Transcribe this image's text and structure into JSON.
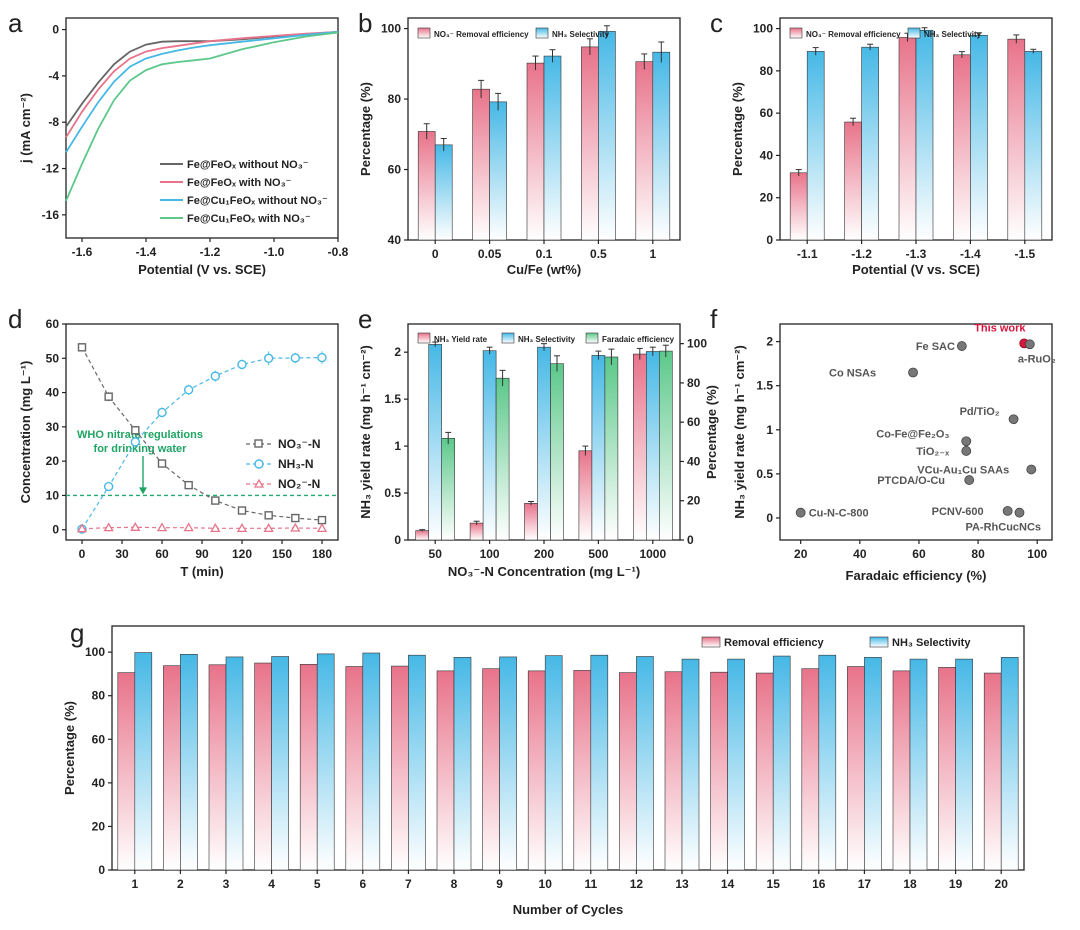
{
  "panels": {
    "a": "a",
    "b": "b",
    "c": "c",
    "d": "d",
    "e": "e",
    "f": "f",
    "g": "g"
  },
  "colors": {
    "red": "#e8738a",
    "blue": "#46b8e6",
    "green": "#5cc88a",
    "gray": "#666666",
    "highlight": "#d6163c"
  },
  "chart_data": [
    {
      "id": "a",
      "type": "line",
      "xlabel": "Potential (V vs. SCE)",
      "ylabel": "j (mA cm⁻²)",
      "xlim": [
        -1.65,
        -0.8
      ],
      "ylim": [
        -18,
        1
      ],
      "xticks": [
        -1.6,
        -1.4,
        -1.2,
        -1.0,
        -0.8
      ],
      "xtick_labels": [
        "-1.6",
        "-1.4",
        "-1.2",
        "-1.0",
        "-0.8"
      ],
      "yticks": [
        0,
        -4,
        -8,
        -12,
        -16
      ],
      "ytick_labels": [
        "0",
        "-4",
        "-8",
        "-12",
        "-16"
      ],
      "series": [
        {
          "name": "Fe@FeOₓ without NO₃⁻",
          "color": "#666666",
          "x": [
            -1.65,
            -1.6,
            -1.55,
            -1.5,
            -1.45,
            -1.4,
            -1.35,
            -1.3,
            -1.25,
            -1.2,
            -1.1,
            -1.0,
            -0.9,
            -0.8
          ],
          "y": [
            -8.4,
            -6.4,
            -4.6,
            -3.0,
            -1.9,
            -1.3,
            -1.05,
            -1.0,
            -1.0,
            -1.0,
            -0.85,
            -0.6,
            -0.4,
            -0.2
          ]
        },
        {
          "name": "Fe@FeOₓ with NO₃⁻",
          "color": "#e8738a",
          "x": [
            -1.65,
            -1.6,
            -1.55,
            -1.5,
            -1.45,
            -1.4,
            -1.35,
            -1.3,
            -1.25,
            -1.2,
            -1.1,
            -1.0,
            -0.9,
            -0.8
          ],
          "y": [
            -9.3,
            -7.1,
            -5.2,
            -3.6,
            -2.5,
            -1.9,
            -1.6,
            -1.4,
            -1.2,
            -1.0,
            -0.75,
            -0.55,
            -0.35,
            -0.2
          ]
        },
        {
          "name": "Fe@Cu₁FeOₓ without NO₃⁻",
          "color": "#46b8e6",
          "x": [
            -1.65,
            -1.6,
            -1.55,
            -1.5,
            -1.45,
            -1.4,
            -1.35,
            -1.3,
            -1.25,
            -1.2,
            -1.1,
            -1.0,
            -0.9,
            -0.8
          ],
          "y": [
            -10.6,
            -8.4,
            -6.3,
            -4.5,
            -3.2,
            -2.5,
            -2.1,
            -1.8,
            -1.55,
            -1.35,
            -1.05,
            -0.75,
            -0.45,
            -0.2
          ]
        },
        {
          "name": "Fe@Cu₁FeOₓ with NO₃⁻",
          "color": "#5cc88a",
          "x": [
            -1.65,
            -1.6,
            -1.55,
            -1.5,
            -1.45,
            -1.4,
            -1.35,
            -1.3,
            -1.25,
            -1.2,
            -1.15,
            -1.1,
            -1.0,
            -0.9,
            -0.8
          ],
          "y": [
            -14.8,
            -11.6,
            -8.6,
            -6.1,
            -4.4,
            -3.5,
            -3.0,
            -2.8,
            -2.65,
            -2.5,
            -2.1,
            -1.7,
            -1.1,
            -0.6,
            -0.25
          ]
        }
      ]
    },
    {
      "id": "b",
      "type": "bar",
      "xlabel": "Cu/Fe (wt%)",
      "ylabel": "Percentage (%)",
      "ylim": [
        40,
        103
      ],
      "yticks": [
        40,
        60,
        80,
        100
      ],
      "categories": [
        "0",
        "0.05",
        "0.1",
        "0.5",
        "1"
      ],
      "series": [
        {
          "name": "NO₃⁻ Removal efficiency",
          "color": "#e8738a",
          "values": [
            70.8,
            82.8,
            90.2,
            94.8,
            90.6
          ],
          "errors": [
            2.2,
            2.5,
            2.0,
            2.3,
            2.2
          ]
        },
        {
          "name": "NH₃ Selectivity",
          "color": "#46b8e6",
          "values": [
            67.0,
            79.2,
            92.2,
            99.2,
            93.3
          ],
          "errors": [
            1.8,
            2.4,
            1.8,
            1.6,
            2.9
          ]
        }
      ]
    },
    {
      "id": "c",
      "type": "bar",
      "xlabel": "Potential (V vs. SCE)",
      "ylabel": "Percentage (%)",
      "ylim": [
        0,
        105
      ],
      "yticks": [
        0,
        20,
        40,
        60,
        80,
        100
      ],
      "categories": [
        "-1.1",
        "-1.2",
        "-1.3",
        "-1.4",
        "-1.5"
      ],
      "series": [
        {
          "name": "NO₃⁻ Removal efficiency",
          "color": "#e8738a",
          "values": [
            31.8,
            55.8,
            95.8,
            87.6,
            95.0
          ],
          "errors": [
            1.5,
            1.8,
            2.0,
            1.5,
            2.0
          ]
        },
        {
          "name": "NH₃ Selectivity",
          "color": "#46b8e6",
          "values": [
            89.2,
            91.2,
            99.2,
            96.8,
            89.2
          ],
          "errors": [
            1.8,
            1.4,
            1.2,
            1.2,
            1.0
          ]
        }
      ]
    },
    {
      "id": "d",
      "type": "line",
      "xlabel": "T (min)",
      "ylabel": "Concentration (mg L⁻¹)",
      "xlim": [
        -12,
        192
      ],
      "ylim": [
        -3,
        60
      ],
      "xticks": [
        0,
        30,
        60,
        90,
        120,
        150,
        180
      ],
      "yticks": [
        0,
        10,
        20,
        30,
        40,
        50,
        60
      ],
      "reference_line": 10,
      "annotation": [
        "WHO nitrate regulations",
        "for drinking water"
      ],
      "series": [
        {
          "name": "NO₃⁻-N",
          "color": "#666666",
          "marker": "square",
          "x": [
            0,
            20,
            40,
            60,
            80,
            100,
            120,
            140,
            160,
            180
          ],
          "y": [
            53.2,
            38.8,
            29.0,
            19.3,
            13.0,
            8.5,
            5.6,
            4.2,
            3.4,
            2.8
          ],
          "errors": [
            1.2,
            1.3,
            1.2,
            1.0,
            1.0,
            1.0,
            1.1,
            1.0,
            0.9,
            0.9
          ]
        },
        {
          "name": "NH₃-N",
          "color": "#46b8e6",
          "marker": "circle",
          "x": [
            0,
            20,
            40,
            60,
            80,
            100,
            120,
            140,
            160,
            180
          ],
          "y": [
            0.2,
            12.6,
            25.6,
            34.2,
            40.8,
            44.8,
            48.2,
            50.0,
            50.1,
            50.2
          ],
          "errors": [
            0.5,
            1.0,
            1.4,
            1.4,
            1.5,
            1.6,
            1.4,
            2.0,
            1.5,
            1.8
          ]
        },
        {
          "name": "NO₂⁻-N",
          "color": "#e8738a",
          "marker": "triangle",
          "x": [
            0,
            20,
            40,
            60,
            80,
            100,
            120,
            140,
            160,
            180
          ],
          "y": [
            0.3,
            0.6,
            0.7,
            0.6,
            0.6,
            0.4,
            0.4,
            0.4,
            0.5,
            0.4
          ],
          "errors": [
            0.3,
            0.4,
            0.4,
            0.3,
            0.3,
            0.3,
            0.3,
            0.3,
            0.3,
            0.3
          ]
        }
      ]
    },
    {
      "id": "e",
      "type": "bar",
      "xlabel": "NO₃⁻-N Concentration (mg L⁻¹)",
      "ylabel": "NH₃ yield rate (mg h⁻¹ cm⁻²)",
      "ylabel_right": "Percentage (%)",
      "ylim": [
        0,
        2.3
      ],
      "ylim_right": [
        0,
        110
      ],
      "yticks": [
        0.0,
        0.5,
        1.0,
        1.5,
        2.0
      ],
      "yticks_right": [
        0,
        20,
        40,
        60,
        80,
        100
      ],
      "categories": [
        "50",
        "100",
        "200",
        "500",
        "1000"
      ],
      "series": [
        {
          "name": "NH₃ Yield rate",
          "axis": "left",
          "color": "#e8738a",
          "values": [
            0.1,
            0.18,
            0.39,
            0.95,
            1.98
          ],
          "errors": [
            0.01,
            0.02,
            0.02,
            0.05,
            0.06
          ]
        },
        {
          "name": "NH₃ Selectivity",
          "axis": "right",
          "color": "#46b8e6",
          "values": [
            99.6,
            96.4,
            98.2,
            94.0,
            96.0
          ],
          "errors": [
            1.2,
            1.8,
            1.8,
            2.2,
            2.2
          ]
        },
        {
          "name": "Faradaic efficiency",
          "axis": "right",
          "color": "#5cc88a",
          "values": [
            51.8,
            82.4,
            89.8,
            93.2,
            96.2
          ],
          "errors": [
            3.0,
            4.0,
            4.0,
            4.0,
            3.0
          ]
        }
      ]
    },
    {
      "id": "f",
      "type": "scatter",
      "xlabel": "Faradaic efficiency (%)",
      "ylabel": "NH₃ yield rate (mg h⁻¹ cm⁻²)",
      "xlim": [
        13,
        105
      ],
      "ylim": [
        -0.25,
        2.2
      ],
      "xticks": [
        20,
        40,
        60,
        80,
        100
      ],
      "yticks": [
        0.0,
        0.5,
        1.0,
        1.5,
        2.0
      ],
      "points": [
        {
          "label": "This work",
          "x": 95.6,
          "y": 1.98,
          "highlight": true
        },
        {
          "label": "a-RuO₂",
          "x": 97.5,
          "y": 1.97
        },
        {
          "label": "Fe SAC",
          "x": 74.5,
          "y": 1.95
        },
        {
          "label": "Co NSAs",
          "x": 58.0,
          "y": 1.65
        },
        {
          "label": "Pd/TiO₂",
          "x": 92.0,
          "y": 1.12
        },
        {
          "label": "Co-Fe@Fe₂O₃",
          "x": 76.0,
          "y": 0.87
        },
        {
          "label": "TiO₂₋ₓ",
          "x": 76.0,
          "y": 0.76
        },
        {
          "label": "VCu-Au₁Cu SAAs",
          "x": 98.0,
          "y": 0.55
        },
        {
          "label": "PTCDA/O-Cu",
          "x": 77.0,
          "y": 0.43
        },
        {
          "label": "PCNV-600",
          "x": 90.0,
          "y": 0.08
        },
        {
          "label": "PA-RhCucNCs",
          "x": 94.0,
          "y": 0.06
        },
        {
          "label": "Cu-N-C-800",
          "x": 20.0,
          "y": 0.06
        }
      ]
    },
    {
      "id": "g",
      "type": "bar",
      "xlabel": "Number of Cycles",
      "ylabel": "Percentage (%)",
      "ylim": [
        0,
        112
      ],
      "yticks": [
        0,
        20,
        40,
        60,
        80,
        100
      ],
      "categories": [
        "1",
        "2",
        "3",
        "4",
        "5",
        "6",
        "7",
        "8",
        "9",
        "10",
        "11",
        "12",
        "13",
        "14",
        "15",
        "16",
        "17",
        "18",
        "19",
        "20"
      ],
      "series": [
        {
          "name": "Removal efficiency",
          "color": "#e8738a",
          "values": [
            90.6,
            93.8,
            94.2,
            95.0,
            94.4,
            93.4,
            93.6,
            91.4,
            92.4,
            91.4,
            91.6,
            90.6,
            91.0,
            90.8,
            90.4,
            92.4,
            93.4,
            91.4,
            93.0,
            90.4
          ]
        },
        {
          "name": "NH₃ Selectivity",
          "color": "#46b8e6",
          "values": [
            99.8,
            99.0,
            97.8,
            98.0,
            99.2,
            99.6,
            98.6,
            97.6,
            97.8,
            98.4,
            98.6,
            98.0,
            96.8,
            96.8,
            98.2,
            98.6,
            97.6,
            96.8,
            96.8,
            97.6
          ]
        }
      ]
    }
  ]
}
